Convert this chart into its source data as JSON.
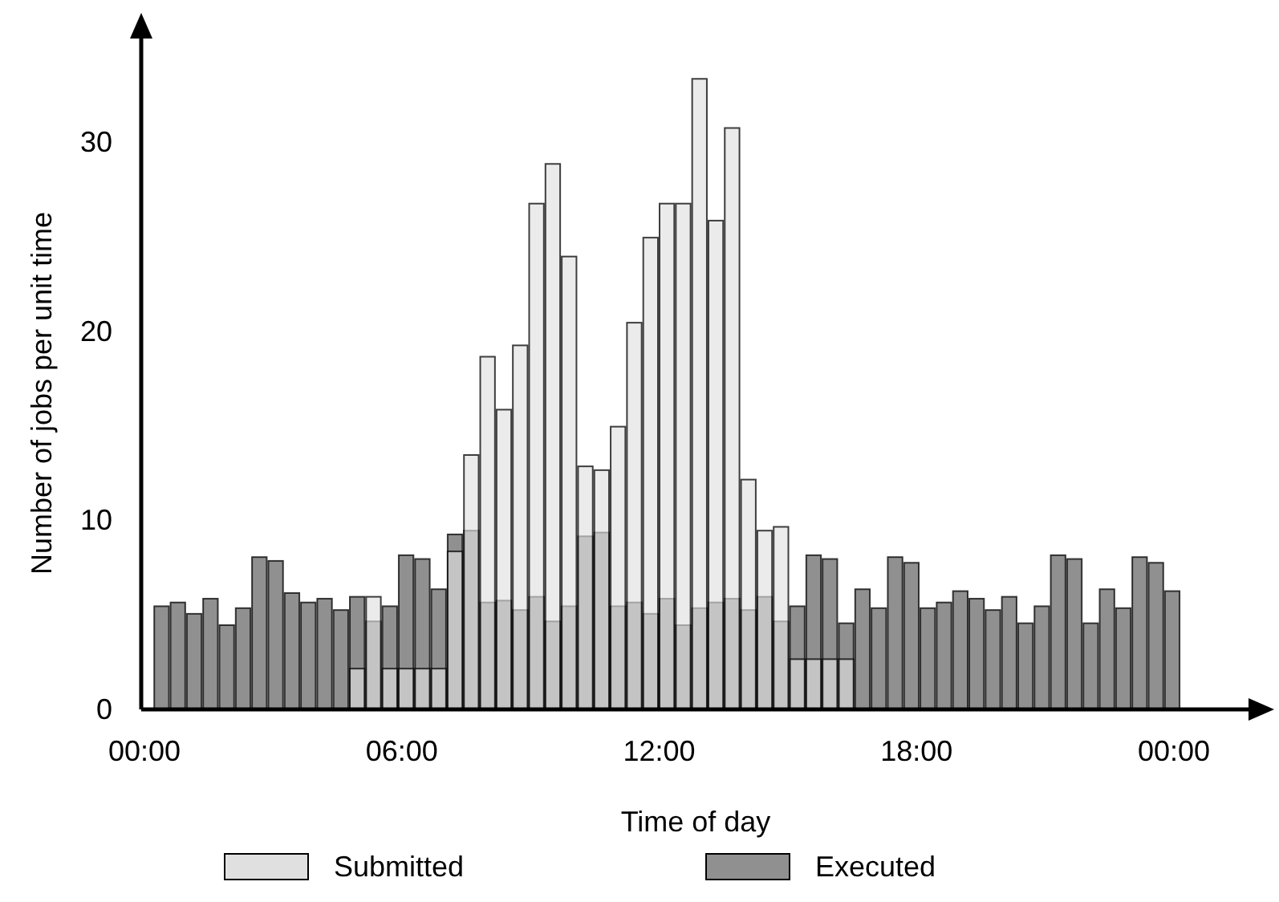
{
  "chart_data": {
    "type": "bar",
    "xlabel": "Time of day",
    "ylabel": "Number of jobs per unit time",
    "x": [
      0.4,
      0.78,
      1.16,
      1.54,
      1.92,
      2.3,
      2.68,
      3.06,
      3.44,
      3.82,
      4.2,
      4.58,
      4.96,
      5.34,
      5.72,
      6.1,
      6.48,
      6.86,
      7.24,
      7.62,
      8,
      8.38,
      8.76,
      9.14,
      9.52,
      9.9,
      10.28,
      10.66,
      11.04,
      11.42,
      11.8,
      12.18,
      12.56,
      12.94,
      13.32,
      13.7,
      14.08,
      14.46,
      14.84,
      15.22,
      15.6,
      15.98,
      16.36,
      16.74,
      17.12,
      17.5,
      17.88,
      18.26,
      18.64,
      19.02,
      19.4,
      19.78,
      20.16,
      20.54,
      20.92,
      21.3,
      21.68,
      22.06,
      22.44,
      22.82,
      23.2,
      23.58,
      23.96
    ],
    "series": [
      {
        "name": "Submitted",
        "color": "#e0e0e0",
        "values": [
          0,
          0,
          0,
          0,
          0,
          0,
          0,
          0,
          0,
          0,
          0,
          0,
          2.2,
          6.0,
          2.2,
          2.2,
          2.2,
          2.2,
          8.4,
          13.5,
          18.7,
          15.9,
          19.3,
          26.8,
          28.9,
          24.0,
          12.9,
          12.7,
          15.0,
          20.5,
          25.0,
          26.8,
          26.8,
          33.4,
          25.9,
          30.8,
          12.2,
          9.5,
          9.7,
          2.7,
          2.7,
          2.7,
          2.7,
          0,
          0,
          0,
          0,
          0,
          0,
          0,
          0,
          0,
          0,
          0,
          0,
          0,
          0,
          0,
          0,
          0,
          0,
          0,
          0
        ]
      },
      {
        "name": "Executed",
        "color": "#909090",
        "values": [
          5.5,
          5.7,
          5.1,
          5.9,
          4.5,
          5.4,
          8.1,
          7.9,
          6.2,
          5.7,
          5.9,
          5.3,
          6.0,
          4.7,
          5.5,
          8.2,
          8.0,
          6.4,
          9.3,
          9.5,
          5.7,
          5.8,
          5.3,
          6.0,
          4.7,
          5.5,
          9.2,
          9.4,
          5.5,
          5.7,
          5.1,
          5.9,
          4.5,
          5.4,
          5.7,
          5.9,
          5.3,
          6.0,
          4.7,
          5.5,
          8.2,
          8.0,
          4.6,
          6.4,
          5.4,
          8.1,
          7.8,
          5.4,
          5.7,
          6.3,
          5.9,
          5.3,
          6.0,
          4.6,
          5.5,
          8.2,
          8.0,
          4.6,
          6.4,
          5.4,
          8.1,
          7.8,
          6.3
        ]
      }
    ],
    "xlim": [
      0,
      26
    ],
    "xticks": [
      {
        "value": 0,
        "label": "00:00"
      },
      {
        "value": 6,
        "label": "06:00"
      },
      {
        "value": 12,
        "label": "12:00"
      },
      {
        "value": 18,
        "label": "18:00"
      },
      {
        "value": 24,
        "label": "00:00"
      }
    ],
    "ylim": [
      0,
      36
    ],
    "yticks": [
      0,
      10,
      20,
      30
    ],
    "legend": "bottom"
  }
}
